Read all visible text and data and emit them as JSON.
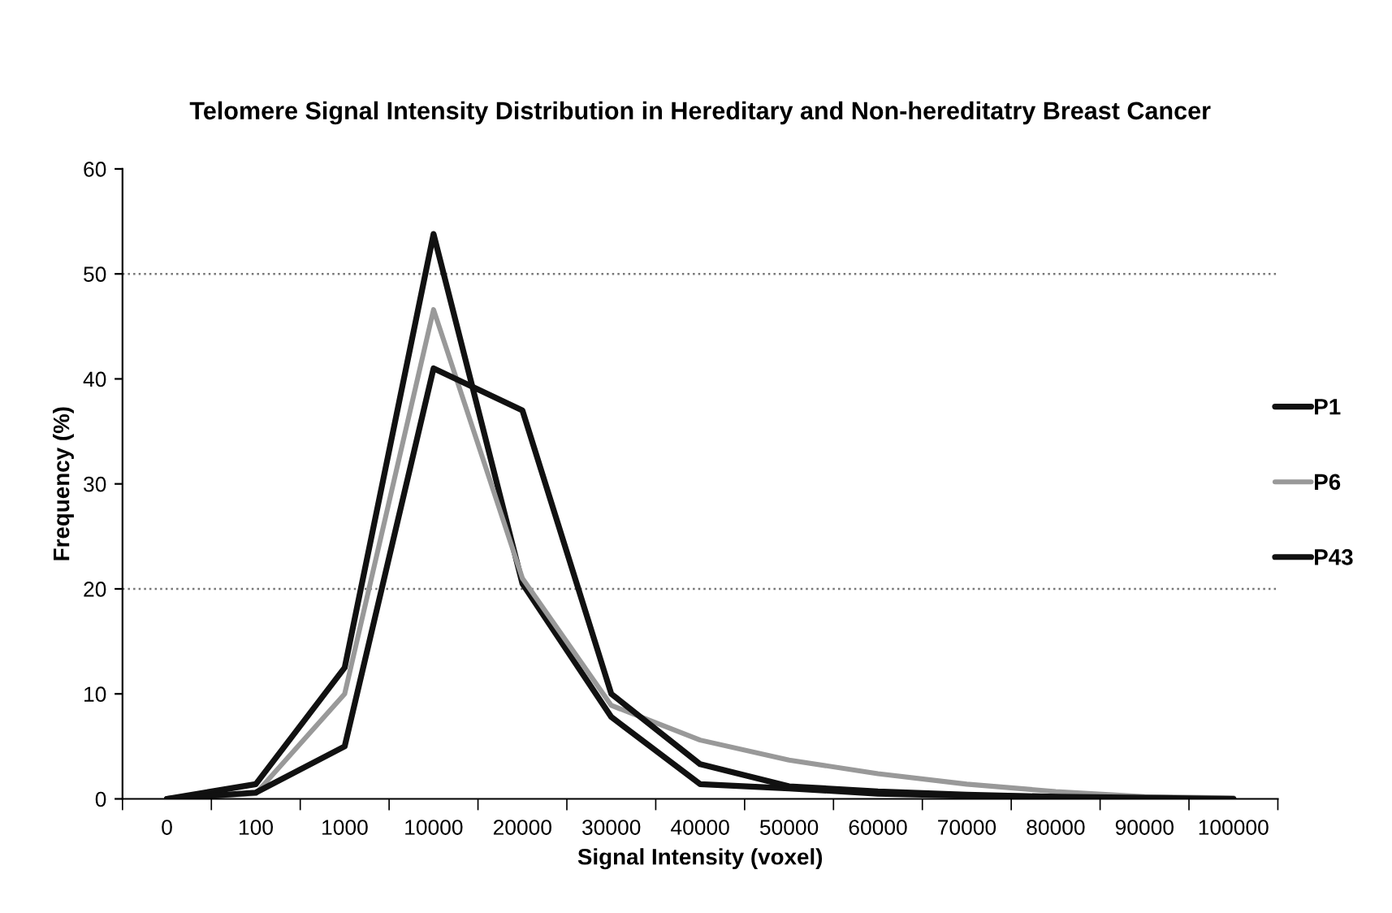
{
  "chart_data": {
    "type": "line",
    "title": "Telomere Signal Intensity Distribution in Hereditary and Non-hereditatry Breast Cancer",
    "xlabel": "Signal Intensity (voxel)",
    "ylabel": "Frequency (%)",
    "categories": [
      "0",
      "100",
      "1000",
      "10000",
      "20000",
      "30000",
      "40000",
      "50000",
      "60000",
      "70000",
      "80000",
      "90000",
      "100000"
    ],
    "series": [
      {
        "name": "P1",
        "color": "#111111",
        "values": [
          0,
          1.4,
          12.5,
          53.8,
          20.5,
          7.8,
          1.4,
          1.0,
          0.5,
          0.3,
          0.2,
          0.1,
          0
        ]
      },
      {
        "name": "P6",
        "color": "#999999",
        "values": [
          0,
          0.5,
          10,
          46.6,
          21,
          8.9,
          5.6,
          3.7,
          2.4,
          1.4,
          0.7,
          0.2,
          0.1
        ]
      },
      {
        "name": "P43",
        "color": "#111111",
        "values": [
          0,
          0.6,
          5,
          41,
          37,
          10,
          3.3,
          1.2,
          0.7,
          0.4,
          0.2,
          0.1,
          0
        ]
      }
    ],
    "ylim": [
      0,
      60
    ],
    "yticks": [
      0,
      10,
      20,
      30,
      40,
      50,
      60
    ],
    "ref_lines": [
      {
        "axis": "y",
        "value": 50,
        "color": "#777777",
        "line_style": "dotted"
      },
      {
        "axis": "y",
        "value": 20,
        "color": "#777777",
        "line_style": "dotted"
      }
    ],
    "grid": false,
    "legend": "right",
    "marker": "none",
    "line_style": "solid"
  }
}
